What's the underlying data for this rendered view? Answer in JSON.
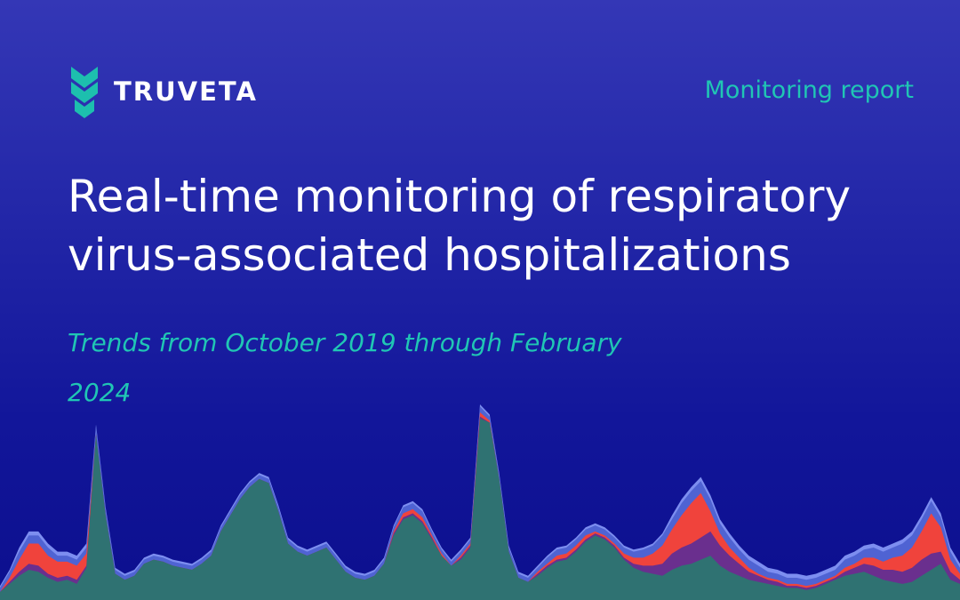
{
  "header": {
    "brand": "TRUVETA",
    "report_label": "Monitoring report"
  },
  "hero": {
    "title": "Real-time monitoring of respiratory virus-associated hospitalizations",
    "subtitle": "Trends from October 2019 through February 2024"
  },
  "colors": {
    "background_top": "#3437b6",
    "background_bottom": "#0c0f8e",
    "accent_teal": "#20c6b4",
    "logo_teal": "#1dbfae",
    "area_teal": "#2f7272",
    "area_red": "#f0433c",
    "area_purple": "#6a2f8e",
    "area_blue": "#4f63d3",
    "area_light_blue": "#7d8ef0"
  },
  "chart_data": {
    "type": "area",
    "stacked": true,
    "x_start": "2019-10",
    "x_end": "2024-02",
    "axes_visible": false,
    "grid": false,
    "legend": "none",
    "series": [
      {
        "color": "#2f7272",
        "values": [
          4,
          8,
          12,
          15,
          14,
          11,
          9,
          10,
          8,
          16,
          82,
          42,
          13,
          10,
          12,
          18,
          20,
          19,
          17,
          16,
          15,
          18,
          22,
          34,
          42,
          50,
          56,
          60,
          58,
          44,
          28,
          24,
          22,
          24,
          26,
          20,
          14,
          11,
          10,
          12,
          18,
          32,
          40,
          42,
          38,
          30,
          22,
          17,
          20,
          26,
          90,
          88,
          60,
          24,
          11,
          9,
          12,
          16,
          19,
          20,
          24,
          29,
          32,
          30,
          26,
          20,
          16,
          14,
          13,
          12,
          15,
          17,
          18,
          20,
          22,
          17,
          14,
          12,
          10,
          9,
          8,
          7,
          6,
          6,
          5,
          6,
          8,
          10,
          12,
          13,
          14,
          12,
          10,
          9,
          8,
          9,
          12,
          15,
          18,
          10,
          8
        ]
      },
      {
        "color": "#6a2f8e",
        "values": [
          0,
          1,
          2,
          3,
          3,
          2,
          2,
          2,
          2,
          1,
          0,
          0,
          0,
          0,
          0,
          0,
          0,
          0,
          0,
          0,
          0,
          0,
          0,
          0,
          0,
          0,
          0,
          0,
          0,
          0,
          0,
          0,
          0,
          0,
          0,
          0,
          0,
          0,
          0,
          0,
          0,
          1,
          1,
          1,
          1,
          1,
          0,
          0,
          1,
          1,
          1,
          0,
          0,
          0,
          0,
          0,
          1,
          1,
          1,
          1,
          1,
          1,
          1,
          1,
          1,
          1,
          2,
          3,
          4,
          6,
          8,
          9,
          10,
          11,
          12,
          10,
          8,
          6,
          4,
          3,
          2,
          2,
          1,
          1,
          1,
          1,
          1,
          1,
          2,
          3,
          4,
          5,
          5,
          6,
          6,
          7,
          8,
          8,
          6,
          4,
          2
        ]
      },
      {
        "color": "#f0433c",
        "values": [
          0,
          2,
          6,
          10,
          11,
          9,
          8,
          7,
          7,
          6,
          0,
          0,
          0,
          0,
          0,
          0,
          0,
          0,
          0,
          0,
          0,
          0,
          0,
          0,
          0,
          0,
          0,
          0,
          0,
          0,
          0,
          0,
          0,
          0,
          0,
          0,
          0,
          0,
          0,
          0,
          0,
          1,
          2,
          2,
          2,
          1,
          1,
          0,
          1,
          1,
          2,
          1,
          0,
          0,
          0,
          0,
          1,
          1,
          2,
          2,
          2,
          2,
          1,
          1,
          1,
          2,
          3,
          4,
          6,
          9,
          12,
          16,
          20,
          22,
          10,
          6,
          4,
          3,
          2,
          1,
          1,
          1,
          1,
          1,
          1,
          1,
          1,
          1,
          2,
          2,
          3,
          4,
          4,
          6,
          8,
          10,
          14,
          20,
          12,
          6,
          3
        ]
      },
      {
        "color": "#4f63d3",
        "values": [
          2,
          3,
          4,
          4,
          4,
          4,
          3,
          3,
          3,
          3,
          4,
          3,
          2,
          2,
          2,
          2,
          2,
          2,
          2,
          2,
          2,
          2,
          2,
          2,
          2,
          2,
          2,
          2,
          2,
          2,
          2,
          2,
          2,
          2,
          2,
          2,
          2,
          2,
          2,
          2,
          2,
          2,
          3,
          3,
          3,
          2,
          2,
          2,
          2,
          2,
          3,
          2,
          2,
          2,
          2,
          2,
          2,
          3,
          3,
          3,
          3,
          3,
          3,
          3,
          3,
          3,
          3,
          4,
          4,
          5,
          5,
          6,
          6,
          6,
          6,
          5,
          5,
          4,
          4,
          4,
          3,
          3,
          3,
          3,
          3,
          3,
          3,
          3,
          4,
          4,
          4,
          5,
          5,
          5,
          6,
          6,
          6,
          6,
          5,
          4,
          3
        ]
      },
      {
        "color": "#7d8ef0",
        "values": [
          1,
          1,
          2,
          2,
          2,
          2,
          2,
          2,
          2,
          2,
          1,
          1,
          1,
          1,
          1,
          1,
          1,
          1,
          1,
          1,
          1,
          1,
          1,
          1,
          1,
          1,
          1,
          1,
          1,
          1,
          1,
          1,
          1,
          1,
          1,
          1,
          1,
          1,
          1,
          1,
          1,
          1,
          1,
          1,
          1,
          1,
          1,
          1,
          1,
          1,
          1,
          1,
          1,
          1,
          1,
          1,
          1,
          1,
          1,
          1,
          1,
          1,
          1,
          1,
          1,
          1,
          1,
          1,
          1,
          1,
          2,
          2,
          2,
          2,
          2,
          2,
          2,
          2,
          2,
          2,
          2,
          2,
          2,
          2,
          2,
          2,
          2,
          2,
          2,
          2,
          2,
          2,
          2,
          2,
          2,
          2,
          2,
          2,
          2,
          2,
          2
        ]
      }
    ]
  }
}
